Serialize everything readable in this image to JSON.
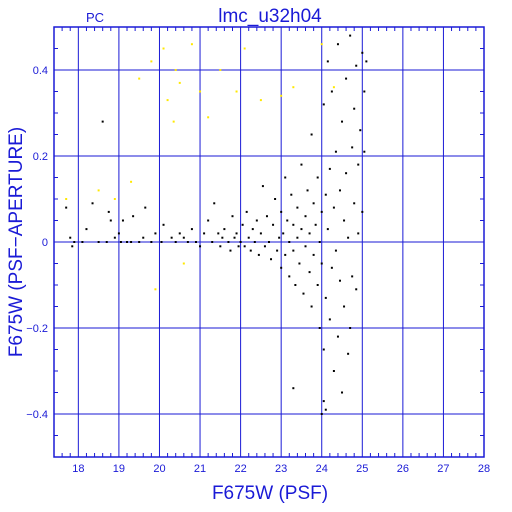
{
  "chart_data": {
    "type": "scatter",
    "title": "lmc_u32h04",
    "panel_label": "PC",
    "xlabel": "F675W (PSF)",
    "ylabel": "F675W (PSF−APERTURE)",
    "xlim": [
      17.4,
      28
    ],
    "ylim": [
      -0.5,
      0.5
    ],
    "x_ticks": [
      18,
      19,
      20,
      21,
      22,
      23,
      24,
      25,
      26,
      27,
      28
    ],
    "y_ticks": [
      -0.4,
      -0.2,
      0,
      0.2,
      0.4
    ],
    "x_tick_labels": [
      "18",
      "19",
      "20",
      "21",
      "22",
      "23",
      "24",
      "25",
      "26",
      "27",
      "28"
    ],
    "y_tick_labels": [
      "−0.4",
      "−0.2",
      "0",
      "0.2",
      "0.4"
    ],
    "grid": true,
    "colors": {
      "axes": "#1a1ad6",
      "stars": "#000000",
      "flagged": "#ffe800"
    },
    "series": [
      {
        "color": "#000000",
        "points": [
          [
            17.7,
            0.08
          ],
          [
            17.8,
            0.01
          ],
          [
            17.85,
            -0.01
          ],
          [
            17.9,
            0.0
          ],
          [
            18.1,
            0.0
          ],
          [
            18.2,
            0.03
          ],
          [
            18.35,
            0.09
          ],
          [
            18.5,
            0.0
          ],
          [
            18.6,
            0.28
          ],
          [
            18.7,
            0.0
          ],
          [
            18.75,
            0.07
          ],
          [
            18.8,
            0.05
          ],
          [
            18.9,
            0.01
          ],
          [
            19.0,
            0.02
          ],
          [
            19.05,
            0.0
          ],
          [
            19.1,
            0.05
          ],
          [
            19.2,
            0.0
          ],
          [
            19.3,
            0.0
          ],
          [
            19.35,
            0.06
          ],
          [
            19.5,
            0.0
          ],
          [
            19.6,
            0.01
          ],
          [
            19.65,
            0.08
          ],
          [
            19.8,
            0.0
          ],
          [
            19.9,
            0.02
          ],
          [
            20.05,
            0.0
          ],
          [
            20.1,
            0.04
          ],
          [
            20.3,
            0.01
          ],
          [
            20.4,
            0.0
          ],
          [
            20.5,
            0.02
          ],
          [
            20.6,
            0.01
          ],
          [
            20.7,
            0.0
          ],
          [
            20.8,
            0.03
          ],
          [
            20.9,
            0.0
          ],
          [
            21.0,
            -0.01
          ],
          [
            21.1,
            0.02
          ],
          [
            21.2,
            0.05
          ],
          [
            21.3,
            0.0
          ],
          [
            21.35,
            0.09
          ],
          [
            21.45,
            0.02
          ],
          [
            21.5,
            -0.01
          ],
          [
            21.55,
            0.01
          ],
          [
            21.6,
            0.03
          ],
          [
            21.7,
            0.0
          ],
          [
            21.75,
            -0.02
          ],
          [
            21.8,
            0.06
          ],
          [
            21.85,
            0.01
          ],
          [
            21.9,
            0.02
          ],
          [
            21.95,
            -0.01
          ],
          [
            22.0,
            0.0
          ],
          [
            22.05,
            0.04
          ],
          [
            22.1,
            -0.01
          ],
          [
            22.15,
            0.07
          ],
          [
            22.2,
            0.01
          ],
          [
            22.25,
            -0.02
          ],
          [
            22.3,
            0.03
          ],
          [
            22.35,
            0.0
          ],
          [
            22.4,
            0.05
          ],
          [
            22.45,
            -0.03
          ],
          [
            22.5,
            0.02
          ],
          [
            22.55,
            0.13
          ],
          [
            22.6,
            -0.01
          ],
          [
            22.65,
            0.06
          ],
          [
            22.7,
            0.0
          ],
          [
            22.75,
            -0.04
          ],
          [
            22.8,
            0.04
          ],
          [
            22.85,
            0.1
          ],
          [
            22.9,
            -0.02
          ],
          [
            22.95,
            0.01
          ],
          [
            23.0,
            0.07
          ],
          [
            23.0,
            -0.06
          ],
          [
            23.05,
            0.02
          ],
          [
            23.1,
            0.15
          ],
          [
            23.1,
            -0.03
          ],
          [
            23.15,
            0.05
          ],
          [
            23.2,
            -0.08
          ],
          [
            23.2,
            0.0
          ],
          [
            23.25,
            0.11
          ],
          [
            23.3,
            -0.02
          ],
          [
            23.3,
            0.04
          ],
          [
            23.35,
            -0.1
          ],
          [
            23.4,
            0.08
          ],
          [
            23.4,
            0.01
          ],
          [
            23.45,
            -0.05
          ],
          [
            23.5,
            0.18
          ],
          [
            23.5,
            0.03
          ],
          [
            23.55,
            -0.12
          ],
          [
            23.6,
            0.06
          ],
          [
            23.6,
            -0.01
          ],
          [
            23.65,
            0.12
          ],
          [
            23.7,
            -0.07
          ],
          [
            23.7,
            0.02
          ],
          [
            23.75,
            0.25
          ],
          [
            23.75,
            -0.15
          ],
          [
            23.8,
            0.09
          ],
          [
            23.8,
            -0.03
          ],
          [
            23.85,
            0.04
          ],
          [
            23.9,
            -0.1
          ],
          [
            23.9,
            0.15
          ],
          [
            23.95,
            -0.2
          ],
          [
            23.95,
            0.0
          ],
          [
            24.0,
            0.07
          ],
          [
            24.0,
            -0.05
          ],
          [
            24.05,
            0.32
          ],
          [
            24.05,
            -0.25
          ],
          [
            24.1,
            0.11
          ],
          [
            24.1,
            -0.13
          ],
          [
            24.15,
            0.03
          ],
          [
            24.15,
            0.42
          ],
          [
            24.2,
            -0.18
          ],
          [
            24.2,
            0.17
          ],
          [
            24.25,
            -0.06
          ],
          [
            24.25,
            0.35
          ],
          [
            24.3,
            -0.3
          ],
          [
            24.3,
            0.08
          ],
          [
            24.35,
            0.21
          ],
          [
            24.35,
            -0.02
          ],
          [
            24.4,
            -0.22
          ],
          [
            24.4,
            0.46
          ],
          [
            24.45,
            0.12
          ],
          [
            24.45,
            -0.09
          ],
          [
            24.5,
            0.28
          ],
          [
            24.5,
            -0.35
          ],
          [
            24.55,
            0.05
          ],
          [
            24.55,
            -0.15
          ],
          [
            24.6,
            0.38
          ],
          [
            24.6,
            0.16
          ],
          [
            24.65,
            -0.26
          ],
          [
            24.65,
            0.01
          ],
          [
            24.7,
            0.48
          ],
          [
            24.7,
            -0.2
          ],
          [
            24.75,
            0.22
          ],
          [
            24.75,
            -0.08
          ],
          [
            24.8,
            0.31
          ],
          [
            24.8,
            0.09
          ],
          [
            24.85,
            -0.11
          ],
          [
            24.85,
            0.41
          ],
          [
            24.9,
            0.18
          ],
          [
            24.9,
            0.02
          ],
          [
            24.95,
            0.26
          ],
          [
            25.0,
            0.44
          ],
          [
            25.0,
            0.07
          ],
          [
            25.05,
            0.35
          ],
          [
            25.05,
            0.21
          ],
          [
            25.1,
            0.42
          ],
          [
            23.3,
            -0.34
          ],
          [
            24.0,
            -0.4
          ],
          [
            24.1,
            -0.39
          ],
          [
            24.05,
            -0.37
          ]
        ]
      },
      {
        "color": "#ffe800",
        "points": [
          [
            17.7,
            0.1
          ],
          [
            18.5,
            0.12
          ],
          [
            18.9,
            0.1
          ],
          [
            19.3,
            0.14
          ],
          [
            19.5,
            0.38
          ],
          [
            19.8,
            0.42
          ],
          [
            19.9,
            -0.11
          ],
          [
            20.1,
            0.45
          ],
          [
            20.2,
            0.33
          ],
          [
            20.35,
            0.28
          ],
          [
            20.4,
            0.4
          ],
          [
            20.5,
            0.37
          ],
          [
            20.6,
            -0.05
          ],
          [
            20.8,
            0.46
          ],
          [
            21.0,
            0.35
          ],
          [
            21.2,
            0.29
          ],
          [
            21.5,
            0.4
          ],
          [
            21.9,
            0.35
          ],
          [
            22.1,
            0.45
          ],
          [
            22.5,
            0.33
          ],
          [
            23.0,
            0.34
          ],
          [
            23.3,
            0.36
          ],
          [
            24.0,
            0.46
          ],
          [
            24.3,
            0.36
          ]
        ]
      }
    ]
  }
}
